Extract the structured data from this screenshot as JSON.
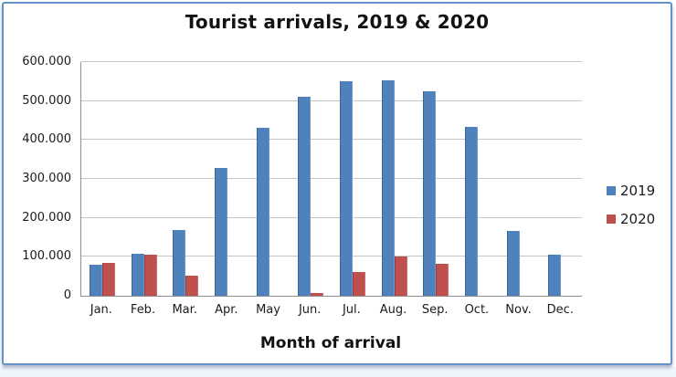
{
  "chart_data": {
    "type": "bar",
    "title": "Tourist arrivals, 2019 & 2020",
    "xlabel": "Month of arrival",
    "ylabel": "",
    "categories": [
      "Jan.",
      "Feb.",
      "Mar.",
      "Apr.",
      "May",
      "Jun.",
      "Jul.",
      "Aug.",
      "Sep.",
      "Oct.",
      "Nov.",
      "Dec."
    ],
    "series": [
      {
        "name": "2019",
        "color": "#4F81BD",
        "values": [
          80000,
          107000,
          168000,
          328000,
          432000,
          510000,
          550000,
          553000,
          524000,
          434000,
          167000,
          105000
        ]
      },
      {
        "name": "2020",
        "color": "#C0504D",
        "values": [
          84000,
          106000,
          52000,
          0,
          0,
          8000,
          62000,
          101000,
          83000,
          0,
          0,
          0
        ]
      }
    ],
    "ylim": [
      0,
      600000
    ],
    "ytick_step": 100000,
    "ytick_labels": [
      "0",
      "100.000",
      "200.000",
      "300.000",
      "400.000",
      "500.000",
      "600.000"
    ],
    "grid": true,
    "legend_position": "right"
  },
  "frame": {
    "border_color": "#6493c9",
    "gridline_color": "#c6c6c6",
    "axis_color": "#8e8e8e"
  }
}
